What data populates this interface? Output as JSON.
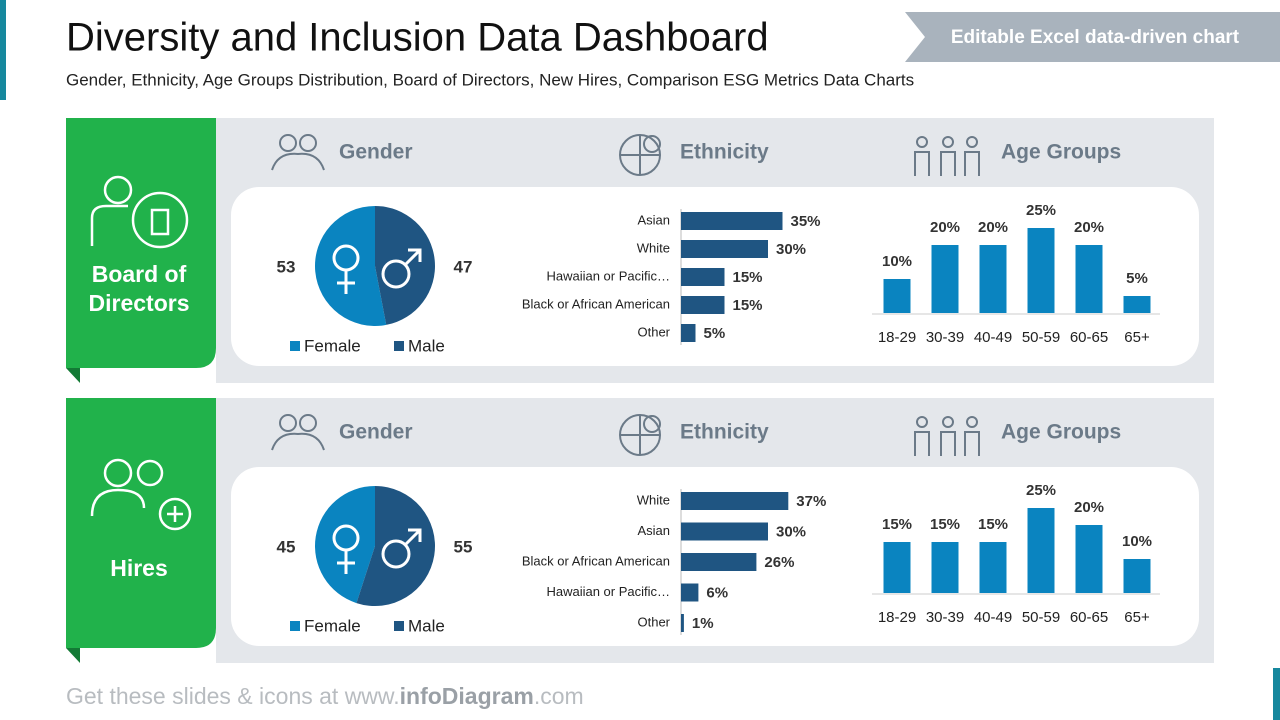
{
  "header": {
    "title": "Diversity and Inclusion Data Dashboard",
    "subtitle": "Gender, Ethnicity, Age Groups Distribution, Board of Directors, New Hires, Comparison ESG Metrics Data Charts",
    "banner": "Editable Excel data-driven chart"
  },
  "panels": [
    {
      "label": [
        "Board of",
        "Directors"
      ]
    },
    {
      "label": [
        "Hires"
      ]
    }
  ],
  "footer": {
    "parts": [
      "Get these slides & icons at www.",
      "infoDiagram",
      ".com"
    ]
  },
  "chart_data": [
    {
      "type": "pie",
      "title": "Gender",
      "categories": [
        "Female",
        "Male"
      ],
      "values": [
        53,
        47
      ],
      "colors": [
        "#0a84c0",
        "#1f5582"
      ]
    },
    {
      "type": "bar",
      "orientation": "horizontal",
      "title": "Ethnicity",
      "categories": [
        "Asian",
        "White",
        "Hawaiian or Pacific…",
        "Black or African American",
        "Other"
      ],
      "values": [
        35,
        30,
        15,
        15,
        5
      ],
      "value_labels": [
        "35%",
        "30%",
        "15%",
        "15%",
        "5%"
      ],
      "color": "#1f5582"
    },
    {
      "type": "bar",
      "orientation": "vertical",
      "title": "Age Groups",
      "categories": [
        "18-29",
        "30-39",
        "40-49",
        "50-59",
        "60-65",
        "65+"
      ],
      "values": [
        10,
        20,
        20,
        25,
        20,
        5
      ],
      "value_labels": [
        "10%",
        "20%",
        "20%",
        "25%",
        "20%",
        "5%"
      ],
      "color": "#0a84c0"
    },
    {
      "type": "pie",
      "title": "Gender",
      "categories": [
        "Female",
        "Male"
      ],
      "values": [
        45,
        55
      ],
      "colors": [
        "#0a84c0",
        "#1f5582"
      ]
    },
    {
      "type": "bar",
      "orientation": "horizontal",
      "title": "Ethnicity",
      "categories": [
        "White",
        "Asian",
        "Black or African American",
        "Hawaiian or Pacific…",
        "Other"
      ],
      "values": [
        37,
        30,
        26,
        6,
        1
      ],
      "value_labels": [
        "37%",
        "30%",
        "26%",
        "6%",
        "1%"
      ],
      "color": "#1f5582"
    },
    {
      "type": "bar",
      "orientation": "vertical",
      "title": "Age Groups",
      "categories": [
        "18-29",
        "30-39",
        "40-49",
        "50-59",
        "60-65",
        "65+"
      ],
      "values": [
        15,
        15,
        15,
        25,
        20,
        10
      ],
      "value_labels": [
        "15%",
        "15%",
        "15%",
        "25%",
        "20%",
        "10%"
      ],
      "color": "#0a84c0"
    }
  ]
}
